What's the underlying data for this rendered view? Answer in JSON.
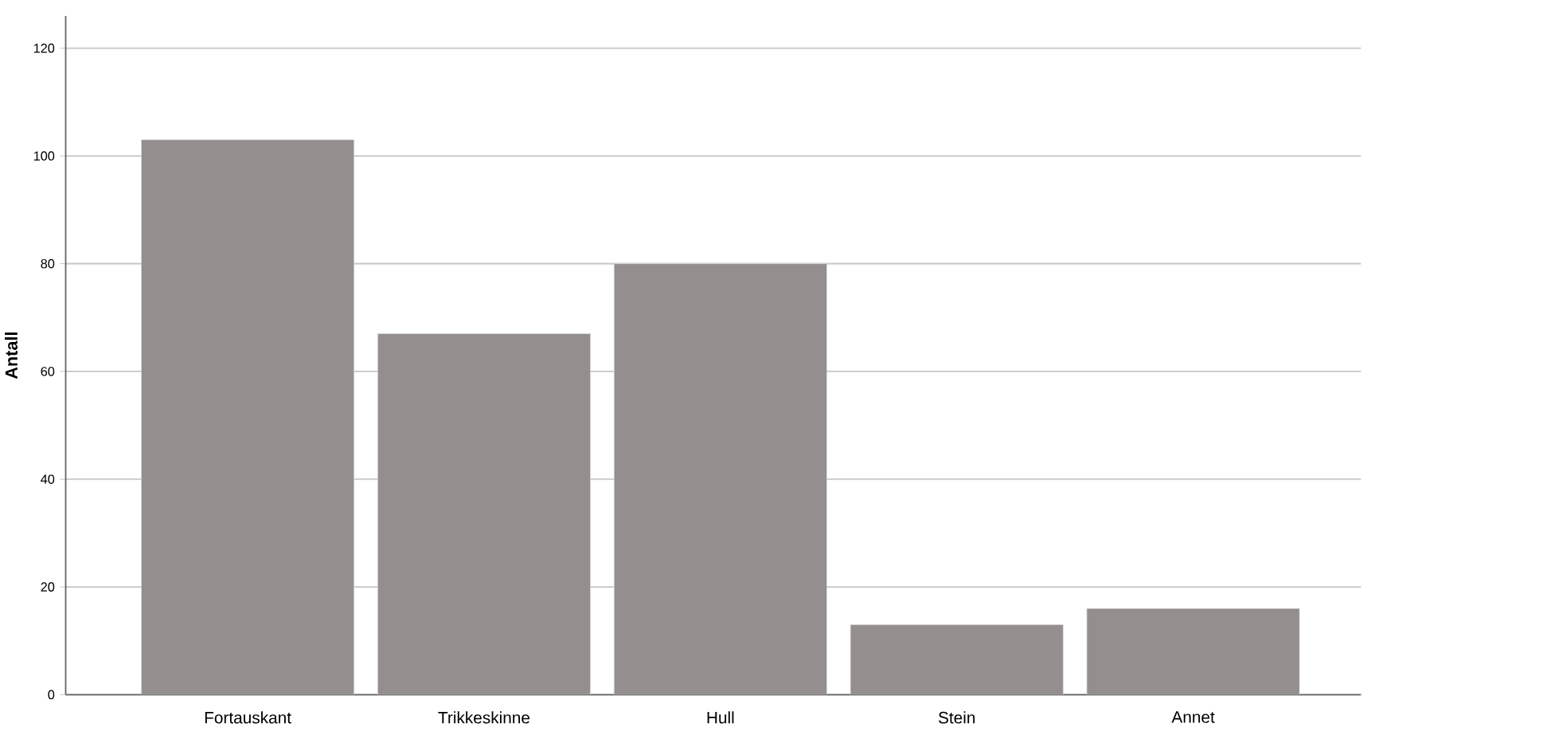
{
  "chart_data": {
    "type": "bar",
    "ylabel": "Antall",
    "categories": [
      "Fortauskant",
      "Trikkeskinne",
      "Hull",
      "Stein",
      "Annet"
    ],
    "values": [
      103,
      67,
      80,
      13,
      16
    ],
    "color": "#948f8e",
    "ylim": [
      0,
      126
    ],
    "yticks": [
      0,
      20,
      40,
      60,
      80,
      100,
      120
    ],
    "grid": "y"
  }
}
